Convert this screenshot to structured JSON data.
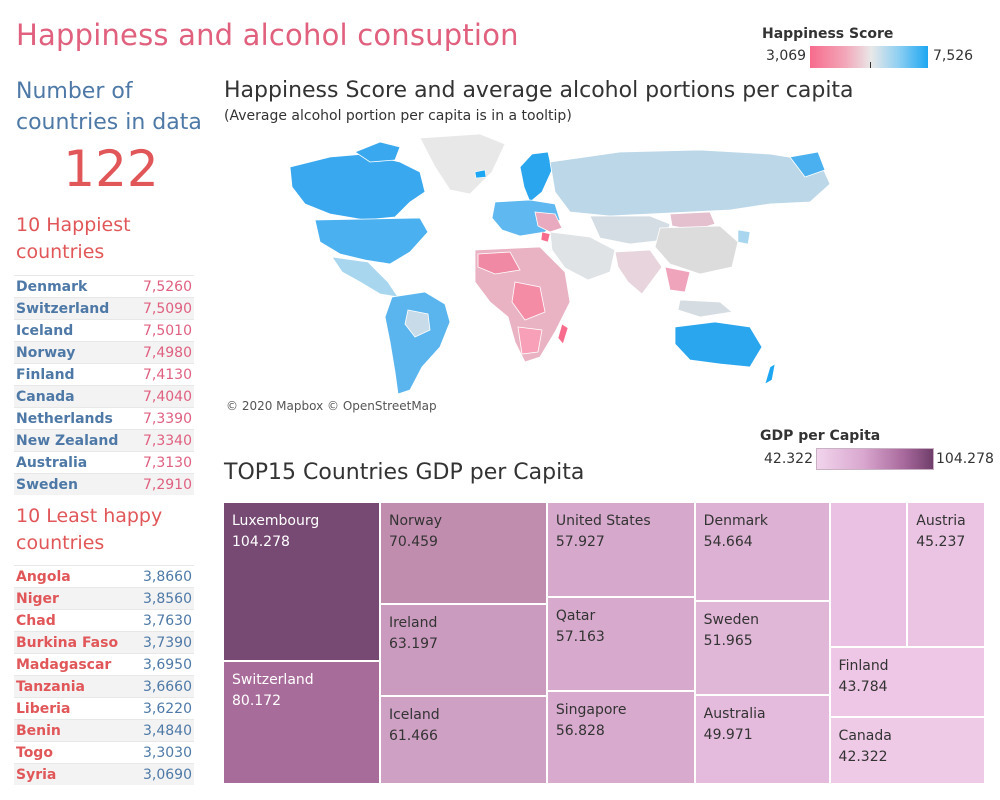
{
  "dashboard": {
    "title": "Happiness and alcohol consuption"
  },
  "happiness_legend": {
    "title": "Happiness Score",
    "min": "3,069",
    "max": "7,526",
    "colors": [
      "#f76b8c",
      "#e8e8e8",
      "#1da7f2"
    ]
  },
  "gdp_legend": {
    "title": "GDP per Capita",
    "min": "42.322",
    "max": "104.278",
    "colors": [
      "#f1d4ec",
      "#6f3e6b"
    ]
  },
  "countries_count": {
    "title_line1": "Number of",
    "title_line2": "countries in data",
    "value": "122"
  },
  "happiest": {
    "title_line1": "10 Happiest",
    "title_line2": "countries",
    "rows": [
      {
        "name": "Denmark",
        "score": "7,5260"
      },
      {
        "name": "Switzerland",
        "score": "7,5090"
      },
      {
        "name": "Iceland",
        "score": "7,5010"
      },
      {
        "name": "Norway",
        "score": "7,4980"
      },
      {
        "name": "Finland",
        "score": "7,4130"
      },
      {
        "name": "Canada",
        "score": "7,4040"
      },
      {
        "name": "Netherlands",
        "score": "7,3390"
      },
      {
        "name": "New Zealand",
        "score": "7,3340"
      },
      {
        "name": "Australia",
        "score": "7,3130"
      },
      {
        "name": "Sweden",
        "score": "7,2910"
      }
    ]
  },
  "least_happy": {
    "title_line1": "10 Least happy",
    "title_line2": "countries",
    "rows": [
      {
        "name": "Angola",
        "score": "3,8660"
      },
      {
        "name": "Niger",
        "score": "3,8560"
      },
      {
        "name": "Chad",
        "score": "3,7630"
      },
      {
        "name": "Burkina Faso",
        "score": "3,7390"
      },
      {
        "name": "Madagascar",
        "score": "3,6950"
      },
      {
        "name": "Tanzania",
        "score": "3,6660"
      },
      {
        "name": "Liberia",
        "score": "3,6220"
      },
      {
        "name": "Benin",
        "score": "3,4840"
      },
      {
        "name": "Togo",
        "score": "3,3030"
      },
      {
        "name": "Syria",
        "score": "3,0690"
      }
    ]
  },
  "map": {
    "title": "Happiness Score and average alcohol portions per capita",
    "subtitle": "(Average alcohol portion per capita is in a tooltip)",
    "credit": "© 2020 Mapbox © OpenStreetMap"
  },
  "treemap": {
    "title": "TOP15 Countries GDP per Capita",
    "tiles": [
      {
        "country": "Luxembourg",
        "value": "104.278",
        "color": "#774a74"
      },
      {
        "country": "Switzerland",
        "value": "80.172",
        "color": "#a86c9a"
      },
      {
        "country": "Norway",
        "value": "70.459",
        "color": "#c18daf"
      },
      {
        "country": "Ireland",
        "value": "63.197",
        "color": "#cb9bbf"
      },
      {
        "country": "Iceland",
        "value": "61.466",
        "color": "#cea0c4"
      },
      {
        "country": "United States",
        "value": "57.927",
        "color": "#d6a9cc"
      },
      {
        "country": "Qatar",
        "value": "57.163",
        "color": "#d7aacd"
      },
      {
        "country": "Singapore",
        "value": "56.828",
        "color": "#d8abce"
      },
      {
        "country": "Denmark",
        "value": "54.664",
        "color": "#dcb1d3"
      },
      {
        "country": "Sweden",
        "value": "51.965",
        "color": "#e1b7d8"
      },
      {
        "country": "Australia",
        "value": "49.971",
        "color": "#e4bbdc"
      },
      {
        "country": "",
        "value": "",
        "color": "#eac1e2"
      },
      {
        "country": "Austria",
        "value": "45.237",
        "color": "#ebc4e3"
      },
      {
        "country": "Finland",
        "value": "43.784",
        "color": "#edc7e5"
      },
      {
        "country": "Canada",
        "value": "42.322",
        "color": "#efcae7"
      }
    ]
  }
}
